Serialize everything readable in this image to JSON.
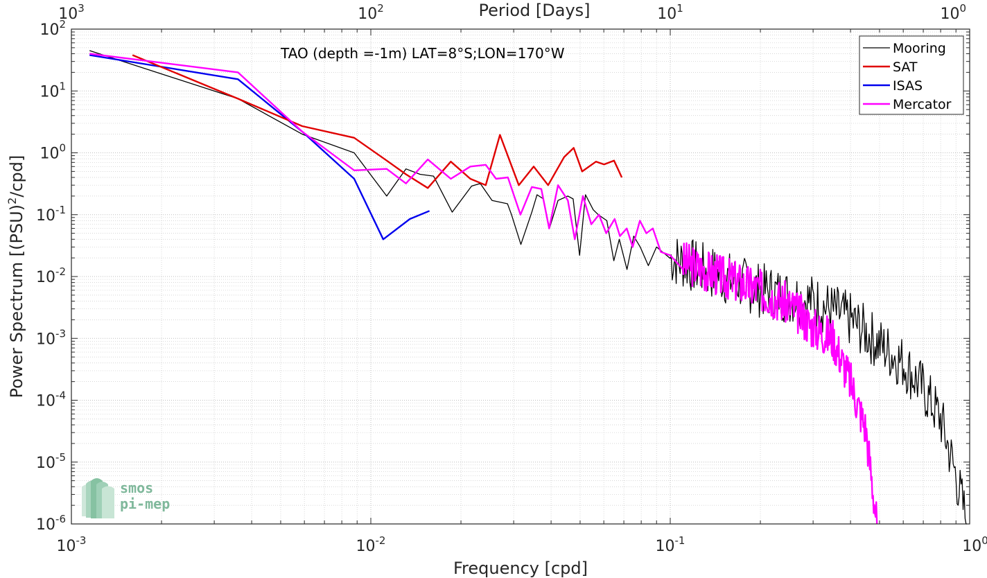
{
  "chart_data": {
    "type": "line",
    "title": "TAO (depth =-1m) LAT=8°S;LON=170°W",
    "xlabel": "Frequency [cpd]",
    "ylabel_parts": [
      "Power Spectrum [(PSU)",
      "2",
      "/cpd]"
    ],
    "top_xlabel": "Period [Days]",
    "xscale": "log",
    "yscale": "log",
    "xlim": [
      0.001,
      1
    ],
    "ylim": [
      1e-06,
      100
    ],
    "grid": true,
    "legend_position": "top-right",
    "x_ticks": [
      {
        "value": 0.001,
        "base": "10",
        "exp": "-3"
      },
      {
        "value": 0.01,
        "base": "10",
        "exp": "-2"
      },
      {
        "value": 0.1,
        "base": "10",
        "exp": "-1"
      },
      {
        "value": 1,
        "base": "10",
        "exp": "0"
      }
    ],
    "y_ticks": [
      {
        "value": 100,
        "base": "10",
        "exp": "2"
      },
      {
        "value": 10,
        "base": "10",
        "exp": "1"
      },
      {
        "value": 1,
        "base": "10",
        "exp": "0"
      },
      {
        "value": 0.1,
        "base": "10",
        "exp": "-1"
      },
      {
        "value": 0.01,
        "base": "10",
        "exp": "-2"
      },
      {
        "value": 0.001,
        "base": "10",
        "exp": "-3"
      },
      {
        "value": 0.0001,
        "base": "10",
        "exp": "-4"
      },
      {
        "value": 1e-05,
        "base": "10",
        "exp": "-5"
      },
      {
        "value": 1e-06,
        "base": "10",
        "exp": "-6"
      }
    ],
    "top_ticks": [
      {
        "period": 1000,
        "base": "10",
        "exp": "3"
      },
      {
        "period": 100,
        "base": "10",
        "exp": "2"
      },
      {
        "period": 10,
        "base": "10",
        "exp": "1"
      },
      {
        "period": 1,
        "base": "10",
        "exp": "0"
      }
    ],
    "series": [
      {
        "name": "Mooring",
        "color": "#000000",
        "width": 1.3,
        "tail": {
          "from": 0.1,
          "to": 0.98,
          "amp": 0.45,
          "seed": 7
        },
        "x": [
          0.00115,
          0.0036,
          0.0059,
          0.0088,
          0.0113,
          0.0131,
          0.0146,
          0.0162,
          0.0187,
          0.0217,
          0.0232,
          0.0254,
          0.0286,
          0.0295,
          0.0317,
          0.0345,
          0.0359,
          0.0377,
          0.0395,
          0.0422,
          0.0455,
          0.0474,
          0.0498,
          0.0521,
          0.0553,
          0.0575,
          0.0614,
          0.0648,
          0.0676,
          0.0717,
          0.0755,
          0.0794,
          0.0845,
          0.09,
          0.1,
          0.2,
          0.3,
          0.4,
          0.5,
          0.6,
          0.7,
          0.8,
          0.9,
          0.98
        ],
        "y": [
          45,
          7.5,
          2.0,
          1.0,
          0.2,
          0.55,
          0.45,
          0.42,
          0.11,
          0.29,
          0.32,
          0.17,
          0.15,
          0.1,
          0.033,
          0.11,
          0.21,
          0.18,
          0.06,
          0.17,
          0.2,
          0.18,
          0.022,
          0.21,
          0.12,
          0.1,
          0.08,
          0.018,
          0.04,
          0.013,
          0.045,
          0.03,
          0.015,
          0.03,
          0.02,
          0.006,
          0.004,
          0.002,
          0.0008,
          0.0004,
          0.00015,
          5e-05,
          6e-06,
          1e-06
        ]
      },
      {
        "name": "SAT",
        "color": "#e00000",
        "width": 2.4,
        "x": [
          0.0016,
          0.0036,
          0.0059,
          0.0088,
          0.0113,
          0.0131,
          0.0155,
          0.0185,
          0.0215,
          0.0242,
          0.027,
          0.0312,
          0.035,
          0.0391,
          0.0442,
          0.0476,
          0.0508,
          0.0565,
          0.0601,
          0.0649,
          0.0689
        ],
        "y": [
          38,
          7.5,
          2.7,
          1.75,
          0.75,
          0.45,
          0.27,
          0.72,
          0.38,
          0.3,
          1.95,
          0.3,
          0.6,
          0.3,
          0.85,
          1.2,
          0.5,
          0.72,
          0.65,
          0.75,
          0.4
        ]
      },
      {
        "name": "ISAS",
        "color": "#0000ee",
        "width": 2.4,
        "x": [
          0.00115,
          0.0036,
          0.0059,
          0.0088,
          0.011,
          0.0135,
          0.0157
        ],
        "y": [
          38,
          15.5,
          2.2,
          0.38,
          0.04,
          0.085,
          0.115
        ]
      },
      {
        "name": "Mercator",
        "color": "#ff00ff",
        "width": 2.4,
        "tail": {
          "from": 0.11,
          "to": 0.49,
          "amp": 0.35,
          "seed": 3
        },
        "x": [
          0.00115,
          0.0036,
          0.0059,
          0.0088,
          0.0113,
          0.0131,
          0.0155,
          0.0185,
          0.0215,
          0.0242,
          0.0262,
          0.0287,
          0.0316,
          0.0345,
          0.0371,
          0.0394,
          0.0422,
          0.0455,
          0.048,
          0.0511,
          0.0545,
          0.0578,
          0.0611,
          0.0652,
          0.0679,
          0.0716,
          0.0749,
          0.0792,
          0.0832,
          0.0875,
          0.093,
          0.1,
          0.15,
          0.2,
          0.25,
          0.3,
          0.35,
          0.4,
          0.45,
          0.49
        ],
        "y": [
          40,
          20,
          2.2,
          0.52,
          0.55,
          0.32,
          0.78,
          0.38,
          0.6,
          0.64,
          0.38,
          0.4,
          0.1,
          0.28,
          0.26,
          0.06,
          0.3,
          0.17,
          0.04,
          0.2,
          0.07,
          0.1,
          0.05,
          0.085,
          0.045,
          0.06,
          0.03,
          0.08,
          0.05,
          0.06,
          0.025,
          0.022,
          0.01,
          0.006,
          0.0035,
          0.0015,
          0.001,
          0.0002,
          3.5e-05,
          1e-06
        ]
      }
    ]
  },
  "logo": {
    "line1": "smos",
    "line2": "pi-mep"
  }
}
